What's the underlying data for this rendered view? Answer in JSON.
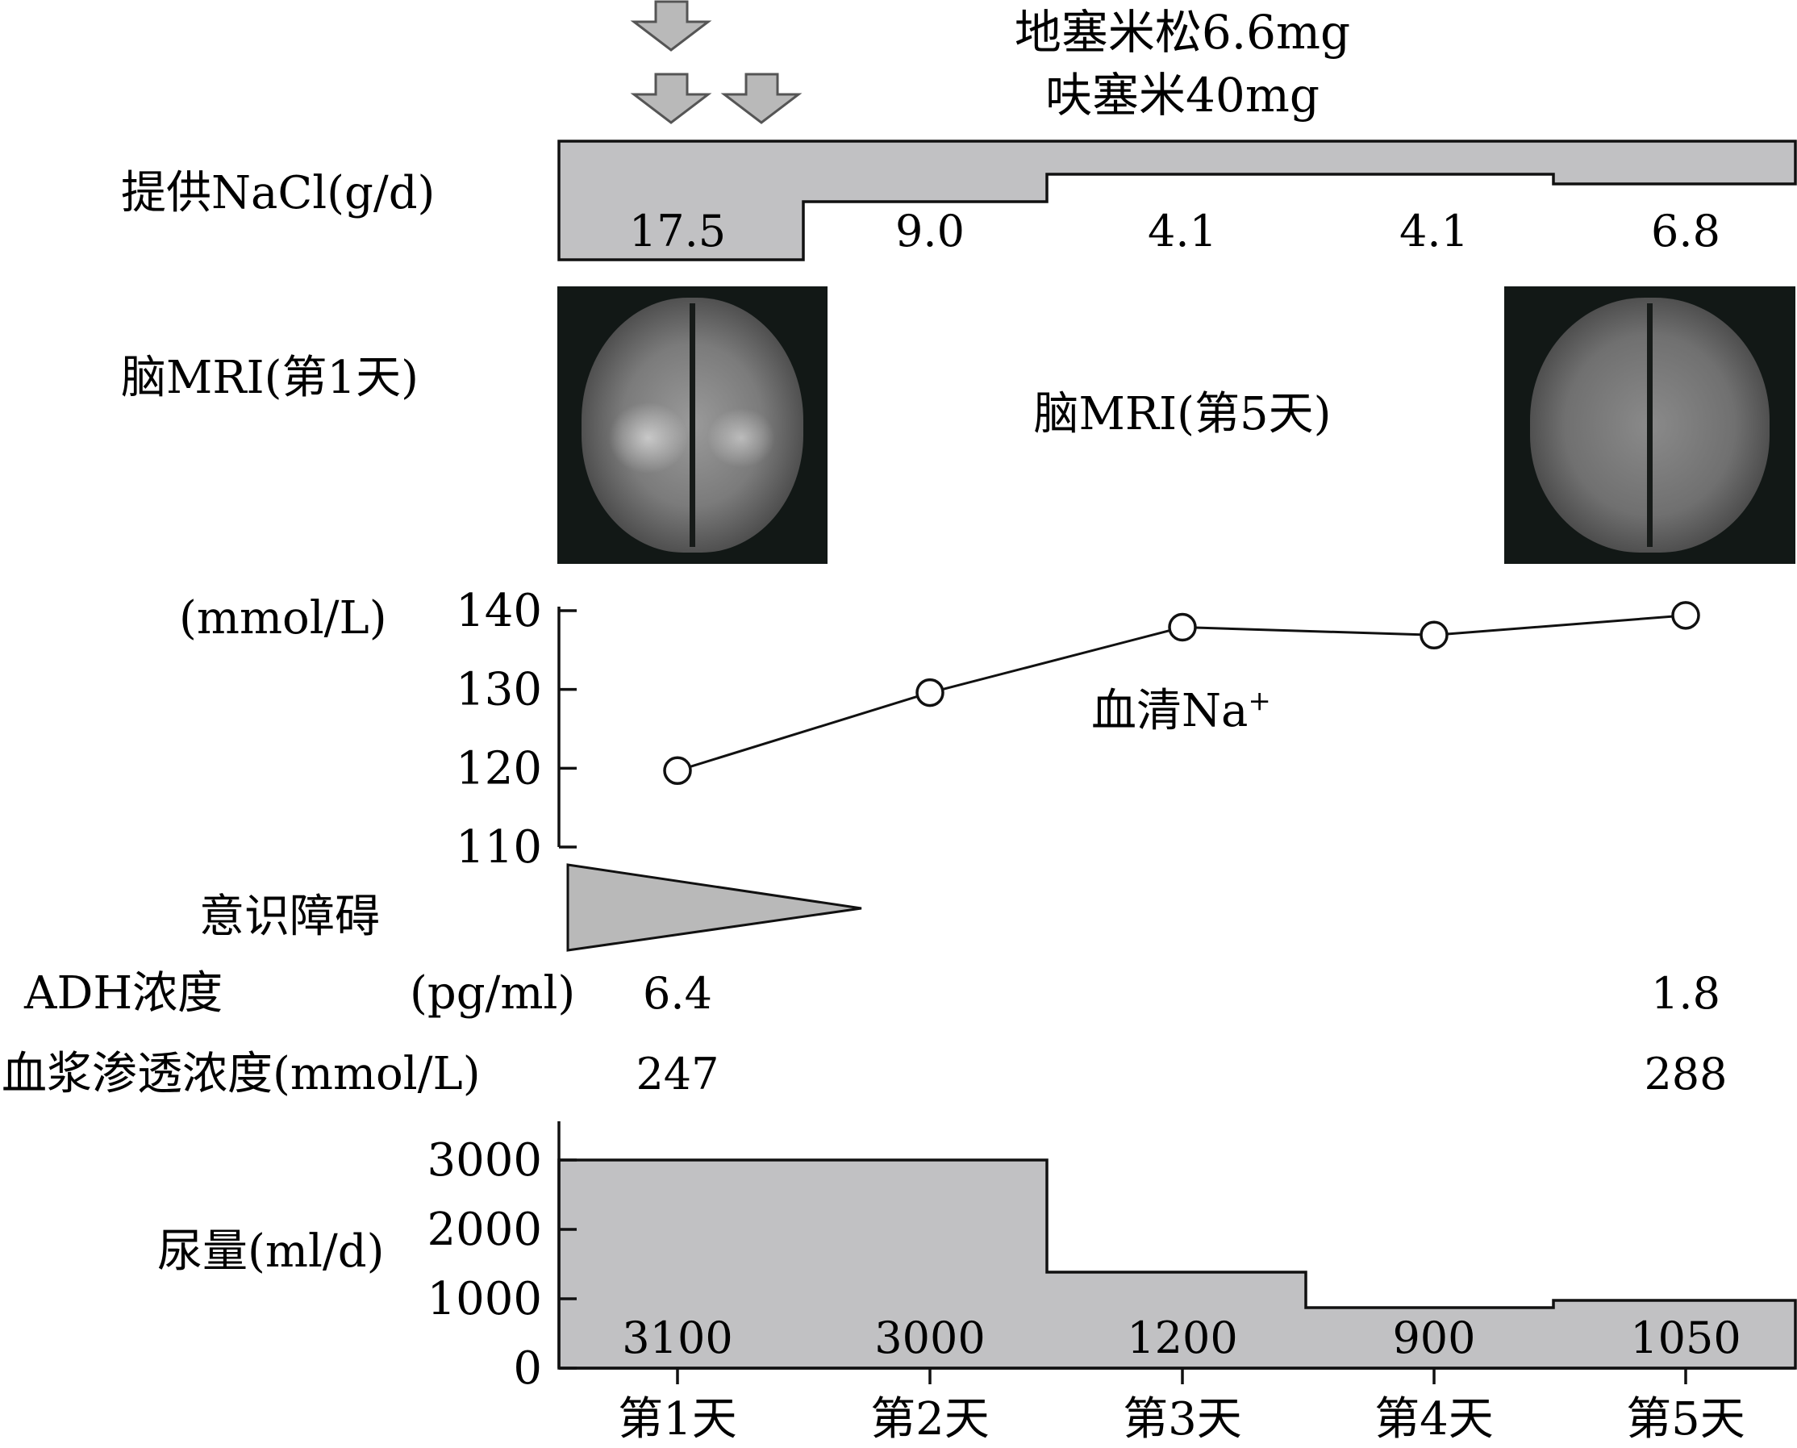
{
  "labels": {
    "dex": "地塞米松6.6mg",
    "furo": "呋塞米40mg",
    "nacl": "提供NaCl(g/d)",
    "mri1": "脑MRI(第1天)",
    "mri5": "脑MRI(第5天)",
    "na_unit": "(mmol/L)",
    "na_series": "血清Na",
    "na_sup": "+",
    "consciousness": "意识障碍",
    "adh": "ADH浓度",
    "adh_unit": "(pg/ml)",
    "osm": "血浆渗透浓度(mmol/L)",
    "urine": "尿量(ml/d)"
  },
  "chart_data": {
    "type": "line",
    "categories": [
      "第1天",
      "第2天",
      "第3天",
      "第4天",
      "第5天"
    ],
    "nacl_values": [
      "17.5",
      "9.0",
      "4.1",
      "4.1",
      "6.8"
    ],
    "serum_na": {
      "values": [
        119.7,
        129.6,
        137.9,
        136.9,
        139.4
      ],
      "ylim": [
        110,
        140
      ],
      "ticks": [
        110,
        120,
        130,
        140
      ]
    },
    "adh_values": [
      "6.4",
      "",
      "",
      "",
      "1.8"
    ],
    "osm_values": [
      "247",
      "",
      "",
      "",
      "288"
    ],
    "urine": {
      "labels": [
        "3100",
        "3000",
        "1200",
        "900",
        "1050"
      ],
      "ylim": [
        0,
        3000
      ],
      "ticks": [
        0,
        1000,
        2000,
        3000
      ]
    }
  },
  "icons": [
    "arrow-down-icon",
    "mri-image"
  ]
}
